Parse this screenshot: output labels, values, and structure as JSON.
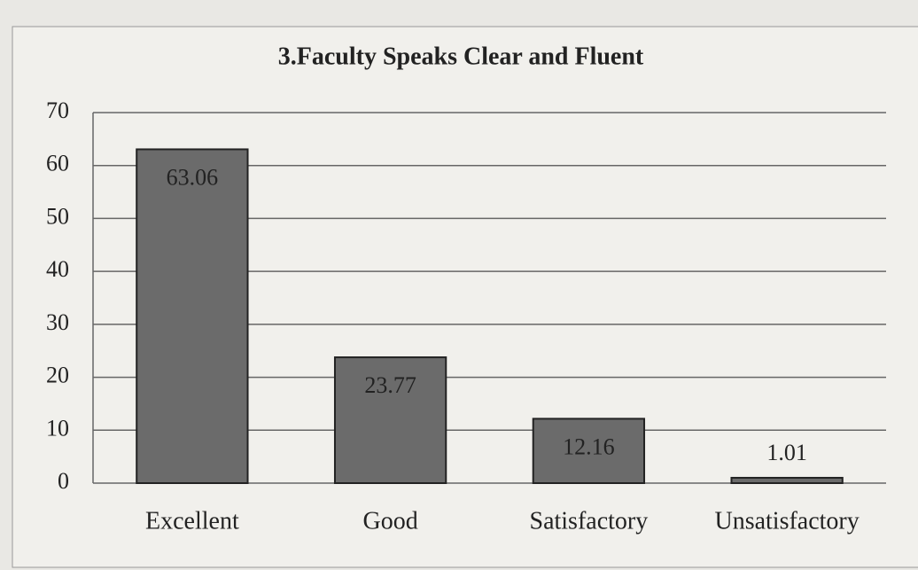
{
  "chart_data": {
    "type": "bar",
    "title": "3.Faculty Speaks Clear and Fluent",
    "categories": [
      "Excellent",
      "Good",
      "Satisfactory",
      "Unsatisfactory"
    ],
    "values": [
      63.06,
      23.77,
      12.16,
      1.01
    ],
    "color": "#6b6b6b",
    "ylim": [
      0,
      70
    ],
    "yticks": [
      0,
      10,
      20,
      30,
      40,
      50,
      60,
      70
    ],
    "grid": true
  }
}
